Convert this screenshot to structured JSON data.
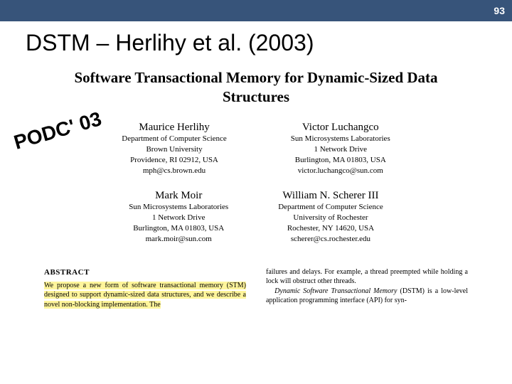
{
  "header": {
    "page_number": "93"
  },
  "slide": {
    "title": "DSTM – Herlihy et al. (2003)"
  },
  "paper": {
    "title_line1": "Software Transactional Memory for Dynamic-Sized Data",
    "title_line2": "Structures"
  },
  "badge": {
    "text": "PODC' 03"
  },
  "authors": [
    {
      "name": "Maurice Herlihy",
      "dept": "Department of Computer Science",
      "org": "Brown University",
      "city": "Providence, RI 02912, USA",
      "email": "mph@cs.brown.edu"
    },
    {
      "name": "Victor Luchangco",
      "dept": "Sun Microsystems Laboratories",
      "org": "1 Network Drive",
      "city": "Burlington, MA 01803, USA",
      "email": "victor.luchangco@sun.com"
    },
    {
      "name": "Mark Moir",
      "dept": "Sun Microsystems Laboratories",
      "org": "1 Network Drive",
      "city": "Burlington, MA 01803, USA",
      "email": "mark.moir@sun.com"
    },
    {
      "name": "William N. Scherer III",
      "dept": "Department of Computer Science",
      "org": "University of Rochester",
      "city": "Rochester, NY 14620, USA",
      "email": "scherer@cs.rochester.edu"
    }
  ],
  "abstract": {
    "heading": "ABSTRACT",
    "left_highlight": "We propose a new form of software transactional memory (STM) designed to support dynamic-sized data structures, and we describe a novel non-blocking implementation. The",
    "right_line1": "failures and delays. For example, a thread preempted while holding a lock will obstruct other threads.",
    "right_line2_before": "",
    "right_italic": "Dynamic Software Transactional Memory",
    "right_line2_after": " (DSTM) is a low-level application programming interface (API) for syn-"
  },
  "style": {
    "header_bg": "#37547a",
    "header_text_color": "#ffffff",
    "highlight_bg": "#fff59b",
    "body_bg": "#ffffff"
  }
}
